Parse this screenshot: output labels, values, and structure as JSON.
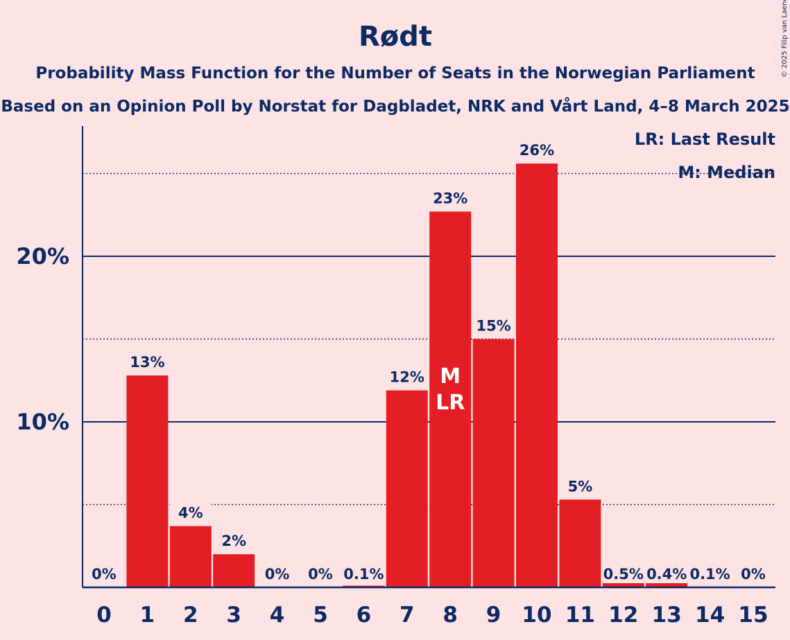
{
  "chart_data": {
    "type": "bar",
    "title": "Rødt",
    "subtitle": "Probability Mass Function for the Number of Seats in the Norwegian Parliament",
    "subtitle2": "Based on an Opinion Poll by Norstat for Dagbladet, NRK and Vårt Land, 4–8 March 2025",
    "copyright": "© 2025 Filip van Laenen",
    "legend": [
      "LR: Last Result",
      "M: Median"
    ],
    "legend_placement": "top-right",
    "categories": [
      "0",
      "1",
      "2",
      "3",
      "4",
      "5",
      "6",
      "7",
      "8",
      "9",
      "10",
      "11",
      "12",
      "13",
      "14",
      "15"
    ],
    "values": [
      0,
      12.8,
      3.7,
      2.0,
      0,
      0,
      0.1,
      11.9,
      22.7,
      15.0,
      25.6,
      5.3,
      0.5,
      0.4,
      0.05,
      0
    ],
    "data_labels": [
      "0%",
      "13%",
      "4%",
      "2%",
      "0%",
      "0%",
      "0.1%",
      "12%",
      "23%",
      "15%",
      "26%",
      "5%",
      "0.5%",
      "0.4%",
      "0.1%",
      "0%"
    ],
    "ylim": [
      0,
      28
    ],
    "yticks": [
      {
        "value": 10,
        "label": "10%"
      },
      {
        "value": 20,
        "label": "20%"
      }
    ],
    "minor_gridlines": [
      5,
      15,
      25
    ],
    "median_index": 8,
    "last_result_index": 8,
    "median_marker": "M",
    "last_result_marker": "LR",
    "colors": {
      "background": "#fde3e3",
      "bar": "#e31e24",
      "text": "#0c2a66",
      "marker_text": "#ffffff"
    }
  }
}
